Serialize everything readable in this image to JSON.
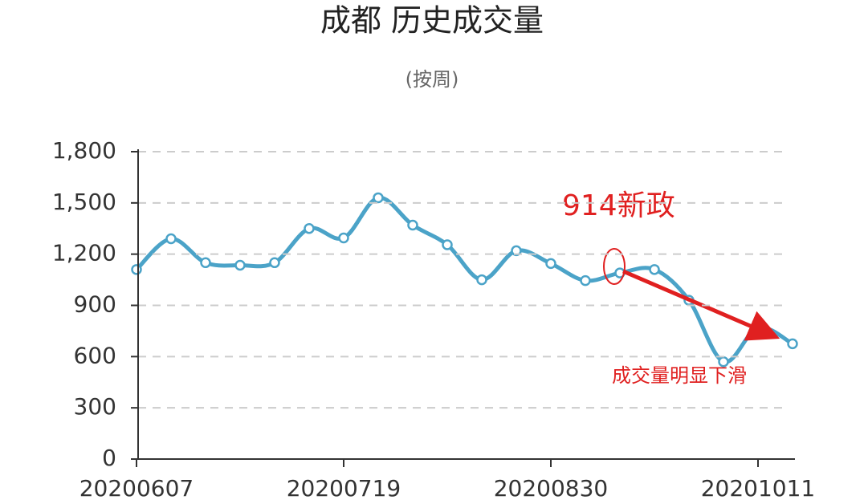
{
  "chart_data": {
    "type": "line",
    "title": "成都 历史成交量",
    "subtitle": "(按周)",
    "categories": [
      "20200607",
      null,
      null,
      null,
      null,
      null,
      "20200719",
      null,
      null,
      null,
      null,
      null,
      "20200830",
      null,
      null,
      null,
      null,
      null,
      "20201011",
      null
    ],
    "series": [
      {
        "name": "成交量",
        "color": "#4ba3c8",
        "values": [
          1110,
          1290,
          1150,
          1135,
          1150,
          1350,
          1295,
          1530,
          1370,
          1255,
          1050,
          1220,
          1145,
          1045,
          1090,
          1110,
          930,
          570,
          770,
          675
        ]
      }
    ],
    "ylim": [
      0,
      1800
    ],
    "yticks": [
      0,
      300,
      600,
      900,
      {
        "value": 1200,
        "label": "1,200"
      },
      {
        "value": 1500,
        "label": "1,500"
      },
      {
        "value": 1800,
        "label": "1,800"
      }
    ],
    "grid": true,
    "annotations": [
      "914新政",
      "成交量明显下滑"
    ]
  }
}
